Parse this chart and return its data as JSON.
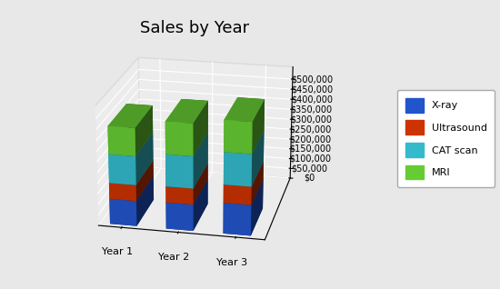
{
  "title": "Sales by Year",
  "categories": [
    "Year 1",
    "Year 2",
    "Year 3"
  ],
  "series": {
    "X-ray": [
      120000,
      125000,
      145000
    ],
    "Ultrasound": [
      75000,
      75000,
      85000
    ],
    "CAT scan": [
      135000,
      150000,
      150000
    ],
    "MRI": [
      130000,
      150000,
      145000
    ]
  },
  "colors": {
    "X-ray": "#2255cc",
    "Ultrasound": "#cc3300",
    "CAT scan": "#33bbcc",
    "MRI": "#66cc33"
  },
  "yticks": [
    0,
    50000,
    100000,
    150000,
    200000,
    250000,
    300000,
    350000,
    400000,
    450000,
    500000
  ],
  "background_color": "#e8e8e8",
  "pane_color": "#f0f0f0",
  "title_fontsize": 13,
  "bar_width": 0.55,
  "bar_depth": 0.55,
  "elev": 20,
  "azim": -78
}
